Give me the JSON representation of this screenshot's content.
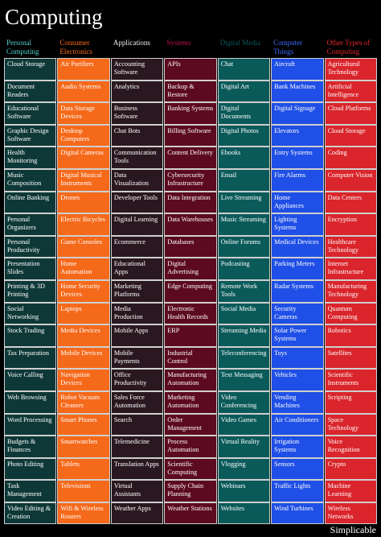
{
  "title": "Computing",
  "columns": [
    {
      "header": "Personal Computing",
      "items": [
        "Cloud Storage",
        "Document Readers",
        "Educational Software",
        "Graphic Design Software",
        "Health Monitoring",
        "Music Composition",
        "Online Banking",
        "Personal Organizers",
        "Personal Productivity",
        "Presentation Slides",
        "Printing & 3D Printing",
        "Social Networking",
        "Stock Trading",
        "Tax Preparation",
        "Voice Calling",
        "Web Browsing",
        "Word Processing",
        "Budgets & Finances",
        "Photo Editing",
        "Task Management",
        "Video Editing & Creation"
      ]
    },
    {
      "header": "Consumer Electronics",
      "items": [
        "Air Purifiers",
        "Audio Systems",
        "Data Storage Devices",
        "Desktop Computers",
        "Digital Cameras",
        "Digital Musical Instruments",
        "Drones",
        "Electric Bicycles",
        "Game Consoles",
        "Home Automation",
        "Home Security Devices",
        "Laptops",
        "Media Devices",
        "Mobile Devices",
        "Navigation Devices",
        "Robot Vacuum Cleaners",
        "Smart Phones",
        "Smartwatches",
        "Tablets",
        "Televisions",
        "Wifi & Wireless Routers"
      ]
    },
    {
      "header": "Applications",
      "items": [
        "Accounting Software",
        "Analytics",
        "Business Software",
        "Chat Bots",
        "Communication Tools",
        "Data Visualization",
        "Developer Tools",
        "Digital Learning",
        "Ecommerce",
        "Educational Apps",
        "Marketing Platforms",
        "Media Production",
        "Mobile Apps",
        "Mobile Payments",
        "Office Productivity",
        "Sales Force Automation",
        "Search",
        "Telemedicine",
        "Translation Apps",
        "Virtual Assistants",
        "Weather Apps"
      ]
    },
    {
      "header": "Systems",
      "items": [
        "APIs",
        "Backup & Restore",
        "Banking Systems",
        "Billing Software",
        "Content Delivery",
        "Cybersecurity Infrastructure",
        "Data Integration",
        "Data Warehouses",
        "Databases",
        "Digital Advertising",
        "Edge Computing",
        "Electronic Health Records",
        "ERP",
        "Industrial Control",
        "Manufacturing Automation",
        "Marketing Automation",
        "Order Management",
        "Process Automation",
        "Scientific Computing",
        "Supply Chain Planning",
        "Weather Stations"
      ]
    },
    {
      "header": "Digital Media",
      "items": [
        "Chat",
        "Digital Art",
        "Digital Documents",
        "Digital Photos",
        "Ebooks",
        "Email",
        "Live Streaming",
        "Music Streaming",
        "Online Forums",
        "Podcasting",
        "Remote Work Tools",
        "Social Media",
        "Streaming Media",
        "Teleconferencing",
        "Text Messaging",
        "Video Conferencing",
        "Video Games",
        "Virtual Reality",
        "Vlogging",
        "Webinars",
        "Websites"
      ]
    },
    {
      "header": "Computer Things",
      "items": [
        "Aircraft",
        "Bank Machines",
        "Digital Signage",
        "Elevators",
        "Entry Systems",
        "Fire Alarms",
        "Home Appliances",
        "Lighting Systems",
        "Medical Devices",
        "Parking Meters",
        "Radar Systems",
        "Security Cameras",
        "Solar Power Systems",
        "Toys",
        "Vehicles",
        "Vending Machines",
        "Air Conditioners",
        "Irrigation Systems",
        "Sensors",
        "Traffic Lights",
        "Wind Turbines"
      ]
    },
    {
      "header": "Other Types of Computing",
      "items": [
        "Agricultural Technology",
        "Artificial Intelligence",
        "Cloud Platforms",
        "Cloud Storage",
        "Coding",
        "Computer Vision",
        "Data Centers",
        "Encryption",
        "Healthcare Technology",
        "Internet Infrastructure",
        "Manufacturing Technology",
        "Quantum Computing",
        "Robotics",
        "Satellites",
        "Scientific Instruments",
        "Scripting",
        "Space Technology",
        "Voice Recognition",
        "Crypto",
        "Machine Learning",
        "Wireless Networks"
      ]
    }
  ],
  "footer": "Simplicable"
}
